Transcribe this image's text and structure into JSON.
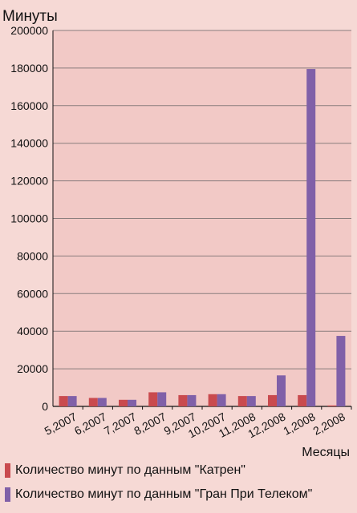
{
  "chart_data": {
    "type": "bar",
    "title": "",
    "ylabel": "Минуты",
    "xlabel": "Месяцы",
    "ylim": [
      0,
      200000
    ],
    "yticks": [
      0,
      20000,
      40000,
      60000,
      80000,
      100000,
      120000,
      140000,
      160000,
      180000,
      200000
    ],
    "grid": true,
    "legend_position": "bottom",
    "categories": [
      "5,2007",
      "6,2007",
      "7,2007",
      "8,2007",
      "9,2007",
      "10,2007",
      "11,2008",
      "12,2008",
      "1,2008",
      "2,2008"
    ],
    "series": [
      {
        "name": "Количество минут по данным \"Катрен\"",
        "color": "#c94a4e",
        "values": [
          5500,
          4500,
          3500,
          7500,
          6000,
          6500,
          5500,
          6000,
          6000,
          500
        ]
      },
      {
        "name": "Количество минут по данным \"Гран При Телеком\"",
        "color": "#8060a8",
        "values": [
          5500,
          4500,
          3500,
          7500,
          6000,
          6500,
          5500,
          16500,
          179500,
          37500
        ]
      }
    ],
    "colors": {
      "background": "#f6d9d5",
      "plot_background": "#f2c9c6",
      "gridline": "#8a7d7d"
    }
  }
}
